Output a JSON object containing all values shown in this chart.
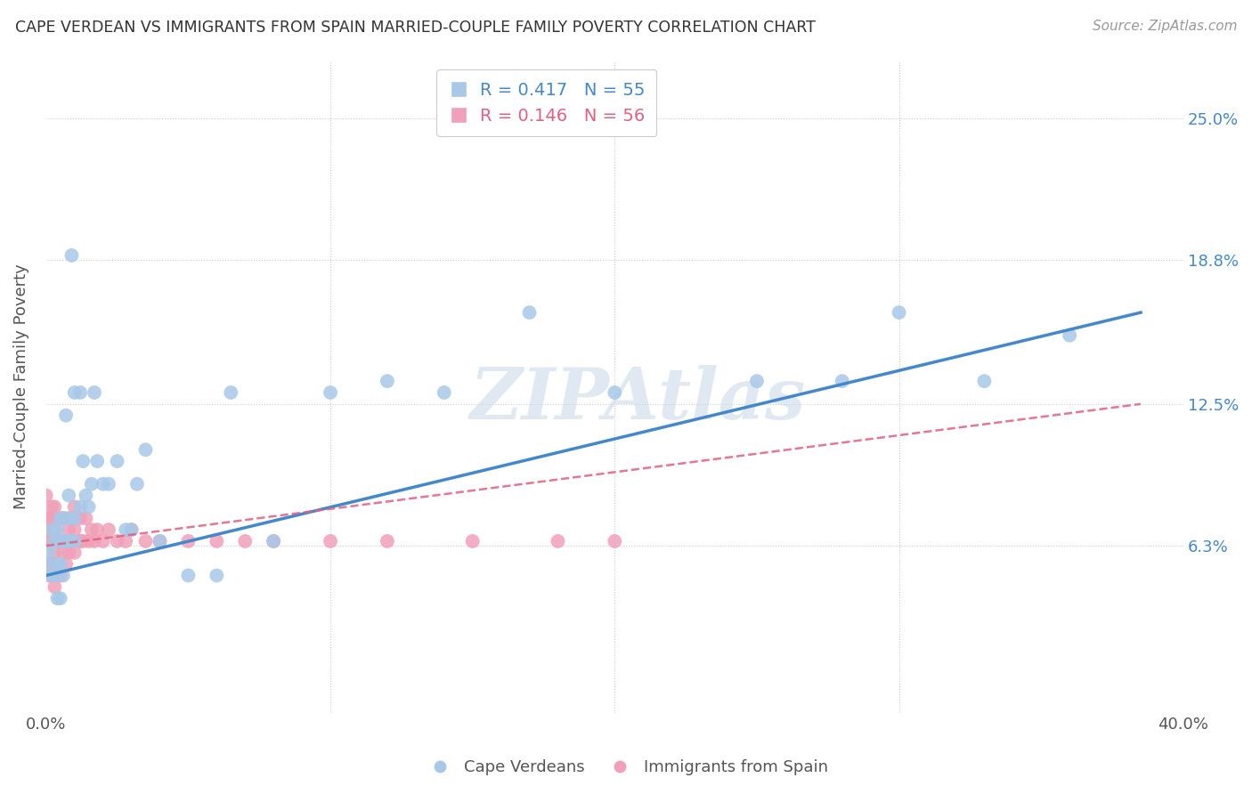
{
  "title": "CAPE VERDEAN VS IMMIGRANTS FROM SPAIN MARRIED-COUPLE FAMILY POVERTY CORRELATION CHART",
  "source": "Source: ZipAtlas.com",
  "ylabel": "Married-Couple Family Poverty",
  "ytick_labels": [
    "25.0%",
    "18.8%",
    "12.5%",
    "6.3%"
  ],
  "ytick_values": [
    0.25,
    0.188,
    0.125,
    0.063
  ],
  "xlim": [
    0.0,
    0.4
  ],
  "ylim": [
    -0.01,
    0.275
  ],
  "watermark": "ZIPAtlas",
  "blue_color": "#a8c8e8",
  "pink_color": "#f0a0b8",
  "blue_line_color": "#4488cc",
  "pink_line_color": "#e06080",
  "cape_verdean_x": [
    0.0,
    0.001,
    0.002,
    0.002,
    0.003,
    0.003,
    0.004,
    0.004,
    0.004,
    0.005,
    0.005,
    0.005,
    0.005,
    0.006,
    0.006,
    0.006,
    0.007,
    0.007,
    0.008,
    0.008,
    0.008,
    0.009,
    0.01,
    0.01,
    0.01,
    0.012,
    0.012,
    0.013,
    0.014,
    0.015,
    0.016,
    0.017,
    0.018,
    0.02,
    0.022,
    0.025,
    0.028,
    0.03,
    0.032,
    0.035,
    0.04,
    0.05,
    0.06,
    0.065,
    0.08,
    0.1,
    0.12,
    0.14,
    0.17,
    0.2,
    0.25,
    0.28,
    0.3,
    0.33,
    0.36
  ],
  "cape_verdean_y": [
    0.055,
    0.06,
    0.05,
    0.07,
    0.05,
    0.065,
    0.04,
    0.055,
    0.07,
    0.04,
    0.055,
    0.065,
    0.075,
    0.05,
    0.065,
    0.075,
    0.065,
    0.12,
    0.065,
    0.075,
    0.085,
    0.19,
    0.065,
    0.075,
    0.13,
    0.08,
    0.13,
    0.1,
    0.085,
    0.08,
    0.09,
    0.13,
    0.1,
    0.09,
    0.09,
    0.1,
    0.07,
    0.07,
    0.09,
    0.105,
    0.065,
    0.05,
    0.05,
    0.13,
    0.065,
    0.13,
    0.135,
    0.13,
    0.165,
    0.13,
    0.135,
    0.135,
    0.165,
    0.135,
    0.155
  ],
  "spain_x": [
    0.0,
    0.0,
    0.0,
    0.0,
    0.001,
    0.001,
    0.001,
    0.002,
    0.002,
    0.002,
    0.003,
    0.003,
    0.003,
    0.003,
    0.004,
    0.004,
    0.004,
    0.005,
    0.005,
    0.005,
    0.006,
    0.006,
    0.007,
    0.007,
    0.007,
    0.008,
    0.008,
    0.009,
    0.009,
    0.01,
    0.01,
    0.01,
    0.012,
    0.012,
    0.013,
    0.014,
    0.015,
    0.016,
    0.017,
    0.018,
    0.02,
    0.022,
    0.025,
    0.028,
    0.03,
    0.035,
    0.04,
    0.05,
    0.06,
    0.07,
    0.08,
    0.1,
    0.12,
    0.15,
    0.18,
    0.2
  ],
  "spain_y": [
    0.055,
    0.065,
    0.075,
    0.085,
    0.05,
    0.065,
    0.075,
    0.055,
    0.07,
    0.08,
    0.045,
    0.06,
    0.07,
    0.08,
    0.055,
    0.065,
    0.075,
    0.05,
    0.065,
    0.075,
    0.06,
    0.075,
    0.055,
    0.065,
    0.075,
    0.06,
    0.07,
    0.065,
    0.075,
    0.06,
    0.07,
    0.08,
    0.065,
    0.075,
    0.065,
    0.075,
    0.065,
    0.07,
    0.065,
    0.07,
    0.065,
    0.07,
    0.065,
    0.065,
    0.07,
    0.065,
    0.065,
    0.065,
    0.065,
    0.065,
    0.065,
    0.065,
    0.065,
    0.065,
    0.065,
    0.065
  ],
  "blue_regline_x": [
    0.0,
    0.385
  ],
  "blue_regline_y": [
    0.05,
    0.165
  ],
  "pink_regline_x": [
    0.0,
    0.385
  ],
  "pink_regline_y": [
    0.063,
    0.125
  ]
}
